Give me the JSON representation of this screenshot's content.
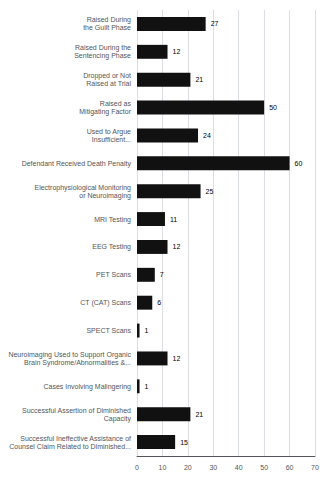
{
  "chart_data": {
    "type": "bar",
    "orientation": "horizontal",
    "categories": [
      "Raised During\nthe Guilt Phase",
      "Raised During the\nSentencing Phase",
      "Dropped or Not\nRaised at Trial",
      "Raised as\nMitigating Factor",
      "Used to Argue\nInsufficient...",
      "Defendant Received Death Penalty",
      "Electrophysiological Monitoring\nor Neuroimaging",
      "MRI Testing",
      "EEG Testing",
      "PET Scans",
      "CT (CAT) Scans",
      "SPECT Scans",
      "Neuroimaging Used to Support Organic\nBrain Syndrome/Abnormalities &...",
      "Cases Involving Malingering",
      "Successful Assertion of Diminished\nCapacity",
      "Successful Ineffective Assistance of\nCounsel Claim Related to Diminished..."
    ],
    "values": [
      27,
      12,
      21,
      50,
      24,
      60,
      25,
      11,
      12,
      7,
      6,
      1,
      12,
      1,
      21,
      15
    ],
    "color": "#111111",
    "xlim": [
      0,
      70
    ],
    "xticks": [
      0,
      10,
      20,
      30,
      40,
      50,
      60,
      70
    ],
    "grid": true,
    "data_labels": true
  }
}
